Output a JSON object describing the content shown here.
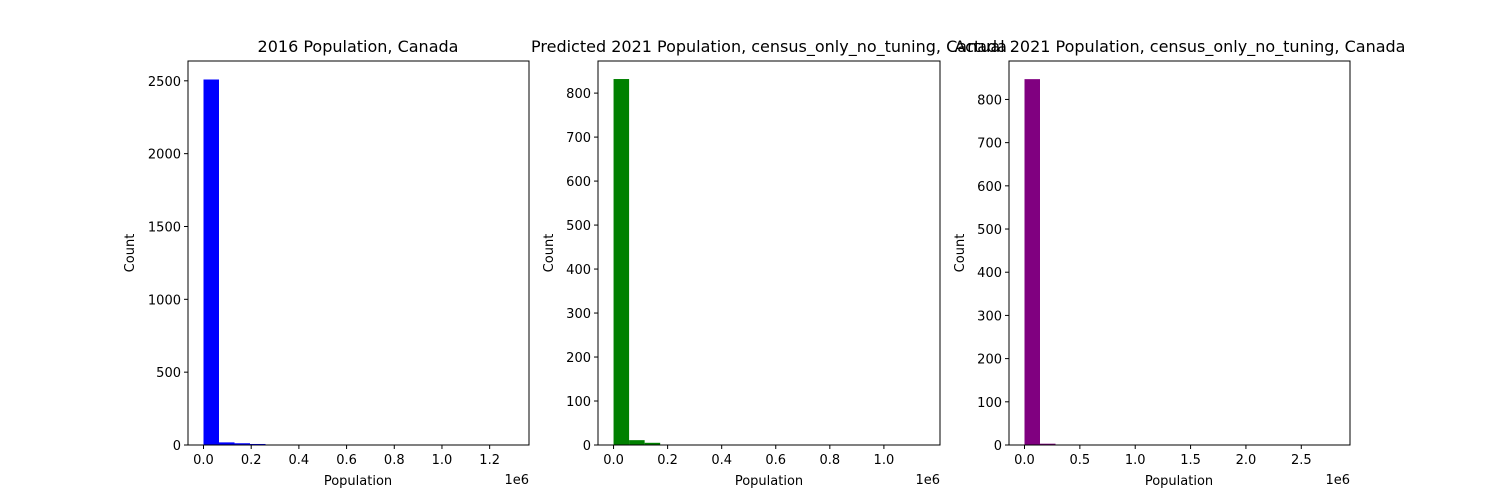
{
  "chart_data": [
    {
      "type": "bar",
      "title": "2016 Population, Canada",
      "xlabel": "Population",
      "ylabel": "Count",
      "color": "#0000ff",
      "x_offset_text": "1e6",
      "x_scale_factor": 1000000,
      "xlim": [
        -65000,
        1365000
      ],
      "ylim": [
        0,
        2636
      ],
      "xticks": [
        0,
        200000,
        400000,
        600000,
        800000,
        1000000,
        1200000
      ],
      "xtick_labels": [
        "0.0",
        "0.2",
        "0.4",
        "0.6",
        "0.8",
        "1.0",
        "1.2"
      ],
      "yticks": [
        0,
        500,
        1000,
        1500,
        2000,
        2500
      ],
      "ytick_labels": [
        "0",
        "500",
        "1000",
        "1500",
        "2000",
        "2500"
      ],
      "bins": [
        {
          "x0": 0,
          "x1": 65000,
          "count": 2509
        },
        {
          "x0": 65000,
          "x1": 130000,
          "count": 18
        },
        {
          "x0": 130000,
          "x1": 195000,
          "count": 12
        },
        {
          "x0": 195000,
          "x1": 260000,
          "count": 7
        },
        {
          "x0": 260000,
          "x1": 325000,
          "count": 2
        },
        {
          "x0": 325000,
          "x1": 390000,
          "count": 1
        },
        {
          "x0": 390000,
          "x1": 455000,
          "count": 1
        },
        {
          "x0": 455000,
          "x1": 520000,
          "count": 1
        },
        {
          "x0": 520000,
          "x1": 585000,
          "count": 1
        },
        {
          "x0": 585000,
          "x1": 650000,
          "count": 0
        },
        {
          "x0": 650000,
          "x1": 715000,
          "count": 1
        },
        {
          "x0": 715000,
          "x1": 780000,
          "count": 0
        },
        {
          "x0": 780000,
          "x1": 845000,
          "count": 1
        },
        {
          "x0": 845000,
          "x1": 910000,
          "count": 0
        },
        {
          "x0": 910000,
          "x1": 975000,
          "count": 0
        },
        {
          "x0": 975000,
          "x1": 1040000,
          "count": 0
        },
        {
          "x0": 1040000,
          "x1": 1105000,
          "count": 1
        },
        {
          "x0": 1105000,
          "x1": 1170000,
          "count": 0
        },
        {
          "x0": 1170000,
          "x1": 1235000,
          "count": 0
        },
        {
          "x0": 1235000,
          "x1": 1300000,
          "count": 1
        }
      ]
    },
    {
      "type": "bar",
      "title": "Predicted 2021 Population, census_only_no_tuning, Canada",
      "xlabel": "Population",
      "ylabel": "Count",
      "color": "#008000",
      "x_offset_text": "1e6",
      "x_scale_factor": 1000000,
      "xlim": [
        -57500,
        1207500
      ],
      "ylim": [
        0,
        873
      ],
      "xticks": [
        0,
        200000,
        400000,
        600000,
        800000,
        1000000
      ],
      "xtick_labels": [
        "0.0",
        "0.2",
        "0.4",
        "0.6",
        "0.8",
        "1.0"
      ],
      "yticks": [
        0,
        100,
        200,
        300,
        400,
        500,
        600,
        700,
        800
      ],
      "ytick_labels": [
        "0",
        "100",
        "200",
        "300",
        "400",
        "500",
        "600",
        "700",
        "800"
      ],
      "bins": [
        {
          "x0": 0,
          "x1": 57500,
          "count": 832
        },
        {
          "x0": 57500,
          "x1": 115000,
          "count": 11
        },
        {
          "x0": 115000,
          "x1": 172500,
          "count": 5
        },
        {
          "x0": 172500,
          "x1": 230000,
          "count": 1
        },
        {
          "x0": 230000,
          "x1": 287500,
          "count": 1
        },
        {
          "x0": 287500,
          "x1": 345000,
          "count": 0
        },
        {
          "x0": 345000,
          "x1": 402500,
          "count": 0
        },
        {
          "x0": 402500,
          "x1": 460000,
          "count": 1
        },
        {
          "x0": 460000,
          "x1": 517500,
          "count": 0
        },
        {
          "x0": 517500,
          "x1": 575000,
          "count": 0
        },
        {
          "x0": 575000,
          "x1": 632500,
          "count": 0
        },
        {
          "x0": 632500,
          "x1": 690000,
          "count": 0
        },
        {
          "x0": 690000,
          "x1": 747500,
          "count": 0
        },
        {
          "x0": 747500,
          "x1": 805000,
          "count": 0
        },
        {
          "x0": 805000,
          "x1": 862500,
          "count": 0
        },
        {
          "x0": 862500,
          "x1": 920000,
          "count": 0
        },
        {
          "x0": 920000,
          "x1": 977500,
          "count": 0
        },
        {
          "x0": 977500,
          "x1": 1035000,
          "count": 0
        },
        {
          "x0": 1035000,
          "x1": 1092500,
          "count": 0
        },
        {
          "x0": 1092500,
          "x1": 1150000,
          "count": 1
        }
      ]
    },
    {
      "type": "bar",
      "title": "Actual 2021 Population, census_only_no_tuning, Canada",
      "xlabel": "Population",
      "ylabel": "Count",
      "color": "#800080",
      "x_offset_text": "1e6",
      "x_scale_factor": 1000000,
      "xlim": [
        -140000,
        2940000
      ],
      "ylim": [
        0,
        889
      ],
      "xticks": [
        0,
        500000,
        1000000,
        1500000,
        2000000,
        2500000
      ],
      "xtick_labels": [
        "0.0",
        "0.5",
        "1.0",
        "1.5",
        "2.0",
        "2.5"
      ],
      "yticks": [
        0,
        100,
        200,
        300,
        400,
        500,
        600,
        700,
        800
      ],
      "ytick_labels": [
        "0",
        "100",
        "200",
        "300",
        "400",
        "500",
        "600",
        "700",
        "800"
      ],
      "bins": [
        {
          "x0": 0,
          "x1": 140000,
          "count": 847
        },
        {
          "x0": 140000,
          "x1": 280000,
          "count": 3
        },
        {
          "x0": 280000,
          "x1": 420000,
          "count": 1
        },
        {
          "x0": 420000,
          "x1": 560000,
          "count": 0
        },
        {
          "x0": 560000,
          "x1": 700000,
          "count": 1
        },
        {
          "x0": 700000,
          "x1": 840000,
          "count": 0
        },
        {
          "x0": 840000,
          "x1": 980000,
          "count": 0
        },
        {
          "x0": 980000,
          "x1": 1120000,
          "count": 0
        },
        {
          "x0": 1120000,
          "x1": 1260000,
          "count": 0
        },
        {
          "x0": 1260000,
          "x1": 1400000,
          "count": 0
        },
        {
          "x0": 1400000,
          "x1": 1540000,
          "count": 0
        },
        {
          "x0": 1540000,
          "x1": 1680000,
          "count": 0
        },
        {
          "x0": 1680000,
          "x1": 1820000,
          "count": 0
        },
        {
          "x0": 1820000,
          "x1": 1960000,
          "count": 0
        },
        {
          "x0": 1960000,
          "x1": 2100000,
          "count": 0
        },
        {
          "x0": 2100000,
          "x1": 2240000,
          "count": 0
        },
        {
          "x0": 2240000,
          "x1": 2380000,
          "count": 0
        },
        {
          "x0": 2380000,
          "x1": 2520000,
          "count": 0
        },
        {
          "x0": 2520000,
          "x1": 2660000,
          "count": 0
        },
        {
          "x0": 2660000,
          "x1": 2800000,
          "count": 1
        }
      ]
    }
  ]
}
